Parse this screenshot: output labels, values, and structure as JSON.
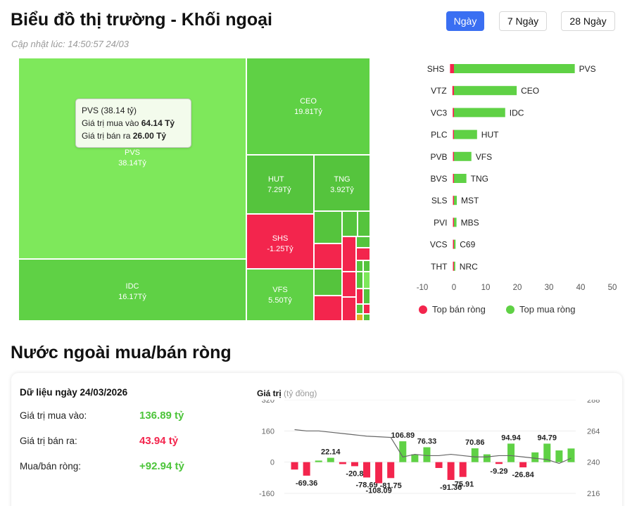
{
  "header": {
    "title": "Biểu đồ thị trường - Khối ngoại",
    "updated": "Cập nhật lúc: 14:50:57 24/03",
    "tabs": [
      {
        "label": "Ngày",
        "active": true
      },
      {
        "label": "7 Ngày",
        "active": false
      },
      {
        "label": "28 Ngày",
        "active": false
      }
    ]
  },
  "treemap": {
    "tiles": [
      {
        "code": "PVS",
        "value": "38.14Tỷ",
        "color": "#7ee85b"
      },
      {
        "code": "CEO",
        "value": "19.81Tỷ",
        "color": "#5fd145"
      },
      {
        "code": "IDC",
        "value": "16.17Tỷ",
        "color": "#5fd145"
      },
      {
        "code": "HUT",
        "value": "7.29Tỷ",
        "color": "#55c43d"
      },
      {
        "code": "TNG",
        "value": "3.92Tỷ",
        "color": "#55c43d"
      },
      {
        "code": "SHS",
        "value": "-1.25Tỷ",
        "color": "#f3254d"
      },
      {
        "code": "VFS",
        "value": "5.50Tỷ",
        "color": "#5fd145"
      }
    ],
    "tooltip": {
      "title": "PVS (38.14 tỷ)",
      "buy_label": "Giá trị mua vào",
      "buy_value": "64.14 Tỷ",
      "sell_label": "Giá trị bán ra",
      "sell_value": "26.00 Tỷ"
    }
  },
  "topbar": {
    "chart_data": {
      "type": "bar",
      "orientation": "horizontal",
      "xlim": [
        -10,
        50
      ],
      "ticks": [
        "-10",
        "0",
        "10",
        "20",
        "30",
        "40",
        "50"
      ],
      "sell": [
        {
          "code": "SHS",
          "value": -1.25
        },
        {
          "code": "VTZ",
          "value": -0.5
        },
        {
          "code": "VC3",
          "value": -0.4
        },
        {
          "code": "PLC",
          "value": 0
        },
        {
          "code": "PVB",
          "value": 0
        },
        {
          "code": "BVS",
          "value": 0
        },
        {
          "code": "SLS",
          "value": 0
        },
        {
          "code": "PVI",
          "value": -0.2
        },
        {
          "code": "VCS",
          "value": -0.2
        },
        {
          "code": "THT",
          "value": -0.1
        }
      ],
      "buy": [
        {
          "code": "PVS",
          "value": 38.14
        },
        {
          "code": "CEO",
          "value": 19.81
        },
        {
          "code": "IDC",
          "value": 16.17
        },
        {
          "code": "HUT",
          "value": 7.29
        },
        {
          "code": "VFS",
          "value": 5.5
        },
        {
          "code": "TNG",
          "value": 3.92
        },
        {
          "code": "MST",
          "value": 0.9
        },
        {
          "code": "MBS",
          "value": 0.8
        },
        {
          "code": "C69",
          "value": 0.5
        },
        {
          "code": "NRC",
          "value": 0.4
        }
      ]
    },
    "legend": {
      "sell": "Top bán ròng",
      "buy": "Top mua ròng",
      "sell_color": "#f3254d",
      "buy_color": "#5fd145"
    }
  },
  "net": {
    "title": "Nước ngoài mua/bán ròng",
    "date_label": "Dữ liệu ngày 24/03/2026",
    "buy_label": "Giá trị mua vào:",
    "buy_value": "136.89 tỷ",
    "sell_label": "Giá trị bán ra:",
    "sell_value": "43.94 tỷ",
    "net_label": "Mua/bán ròng:",
    "net_value": "+92.94 tỷ",
    "chart_label": "Giá trị",
    "chart_unit": "(tỷ đồng)",
    "chart_data": {
      "type": "bar",
      "left_ticks": [
        "320",
        "160",
        "0",
        "-160"
      ],
      "right_ticks": [
        "288",
        "264",
        "240",
        "216"
      ],
      "ylim": [
        -160,
        320
      ],
      "y2lim": [
        216,
        288
      ],
      "values": [
        -38,
        -69.36,
        8,
        22.14,
        -10,
        -20.8,
        -78.69,
        -108.09,
        -81.75,
        106.89,
        40,
        76.33,
        -30,
        -91.36,
        -75.91,
        70.86,
        40,
        -9.29,
        94.94,
        -26.84,
        50,
        94.79,
        60,
        70
      ],
      "value_labels": [
        "",
        "-69.36",
        "",
        "22.14",
        "",
        "-20.8",
        "-78.69",
        "-108.09",
        "-81.75",
        "106.89",
        "",
        "76.33",
        "",
        "-91.36",
        "-75.91",
        "70.86",
        "",
        "-9.29",
        "94.94",
        "-26.84",
        "",
        "94.79",
        "",
        ""
      ],
      "line": [
        265,
        264,
        264,
        263,
        262,
        261,
        260,
        259.5,
        259,
        244,
        246,
        245,
        245,
        246,
        245,
        244,
        244,
        245,
        245,
        244,
        243,
        242,
        239,
        243
      ]
    }
  }
}
